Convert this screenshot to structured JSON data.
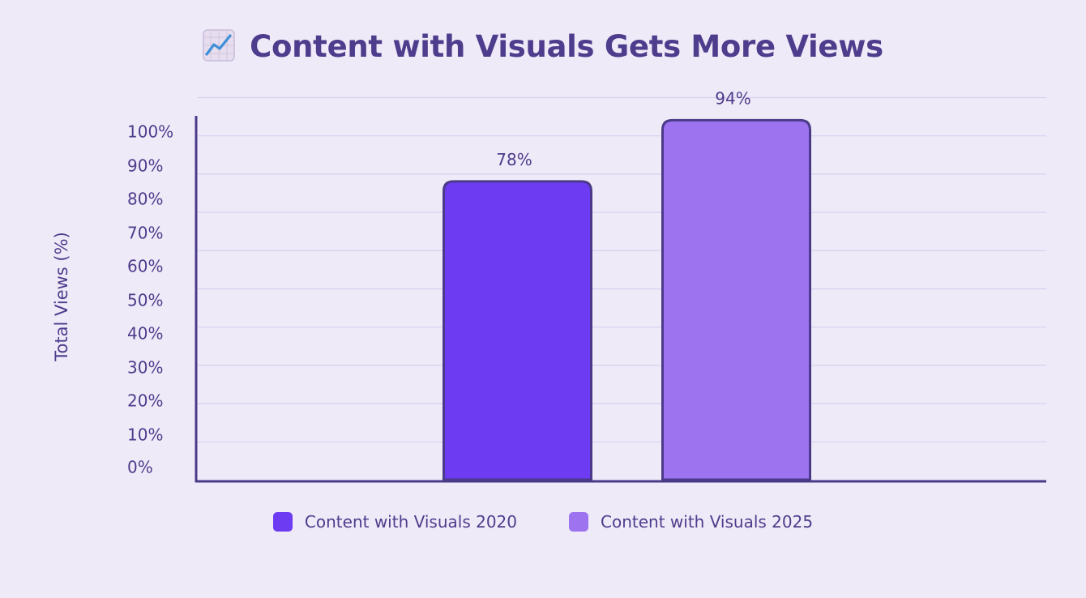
{
  "chart_data": {
    "type": "bar",
    "title": "Content with Visuals Gets More Views",
    "title_icon": "chart-increasing-icon",
    "ylabel": "Total Views (%)",
    "xlabel": "",
    "ylim": [
      0,
      100
    ],
    "yticks": [
      0,
      10,
      20,
      30,
      40,
      50,
      60,
      70,
      80,
      90,
      100
    ],
    "ytick_labels": [
      "0%",
      "10%",
      "20%",
      "30%",
      "40%",
      "50%",
      "60%",
      "70%",
      "80%",
      "90%",
      "100%"
    ],
    "grid": true,
    "legend_position": "bottom",
    "categories": [
      "Content with Visuals 2020",
      "Content with Visuals 2025"
    ],
    "series": [
      {
        "name": "Content with Visuals 2020",
        "value": 78,
        "label": "78%",
        "color": "#6D3BF2"
      },
      {
        "name": "Content with Visuals 2025",
        "value": 94,
        "label": "94%",
        "color": "#9D73F0"
      }
    ]
  },
  "colors": {
    "background": "#EFEAF8",
    "axis": "#4B3A89",
    "grid": "#D7CFF1",
    "text": "#4E3C8C"
  }
}
